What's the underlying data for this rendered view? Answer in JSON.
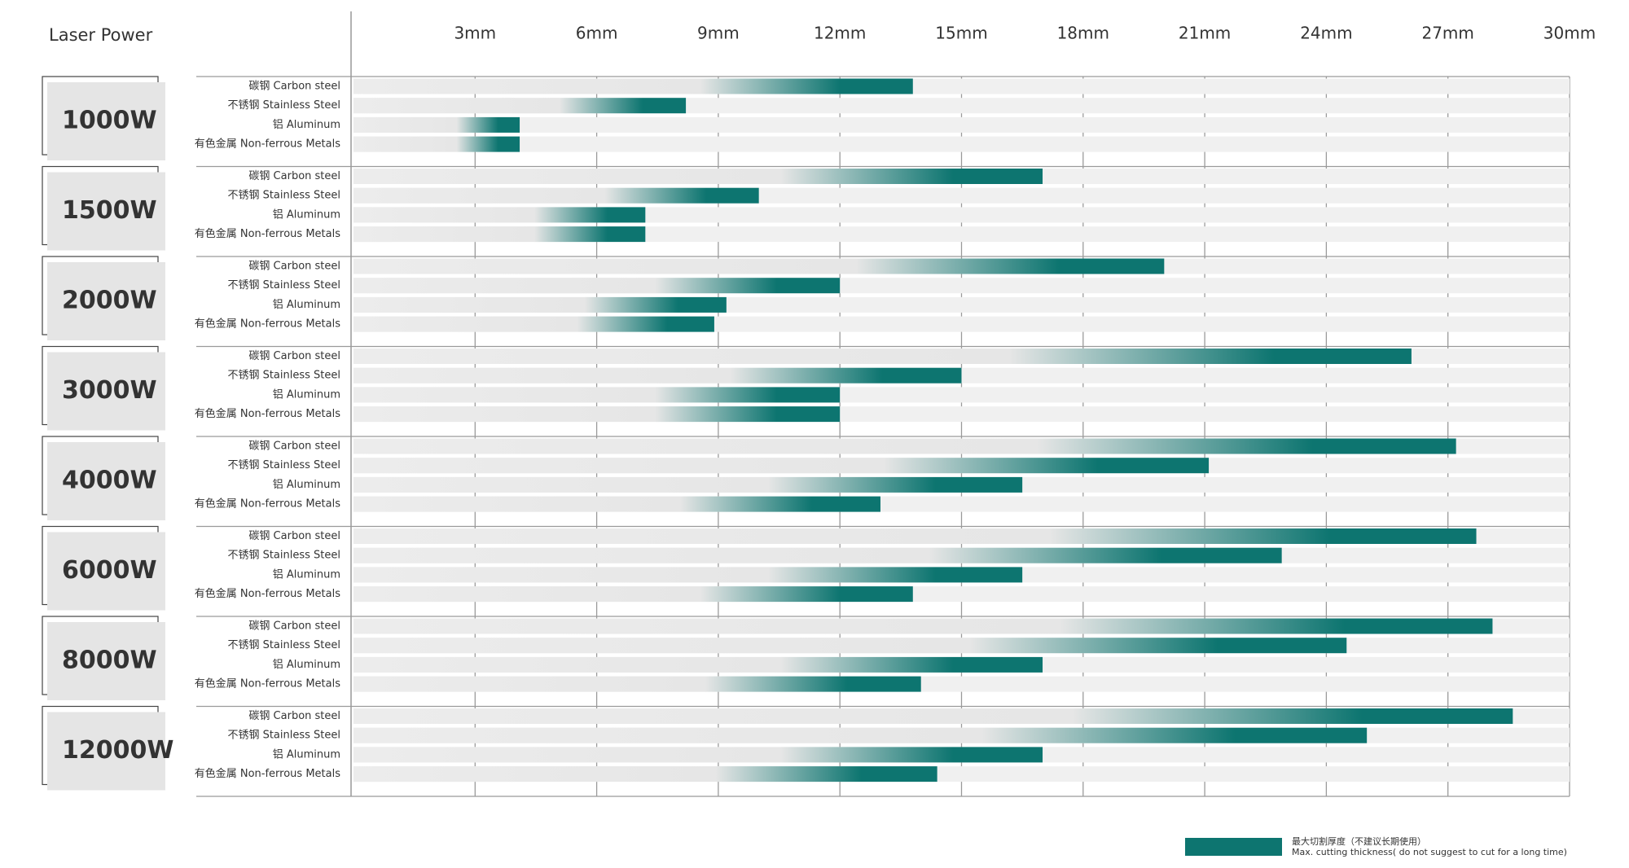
{
  "chart_data": {
    "type": "bar",
    "orientation": "horizontal",
    "y_label": "Laser Power",
    "categories": [
      "碳钢 Carbon steel",
      "不锈钢 Stainless Steel",
      "铝 Aluminum",
      "有色金属 Non-ferrous Metals"
    ],
    "series": [
      {
        "name": "1000W",
        "values": [
          13.8,
          8.2,
          4.1,
          4.1
        ]
      },
      {
        "name": "1500W",
        "values": [
          17,
          10,
          7.2,
          7.2
        ]
      },
      {
        "name": "2000W",
        "values": [
          20,
          12,
          9.2,
          8.9
        ]
      },
      {
        "name": "3000W",
        "values": [
          26.1,
          15,
          12,
          12
        ]
      },
      {
        "name": "4000W",
        "values": [
          27.2,
          21.1,
          16.5,
          13
        ]
      },
      {
        "name": "6000W",
        "values": [
          27.7,
          22.9,
          16.5,
          13.8
        ]
      },
      {
        "name": "8000W",
        "values": [
          28.1,
          24.5,
          17,
          14
        ]
      },
      {
        "name": "12000W",
        "values": [
          28.6,
          25,
          17,
          14.4
        ]
      }
    ],
    "color": "#0d7570",
    "xlim": [
      0,
      30
    ],
    "xticks": [
      {
        "value": 3,
        "label": "3mm"
      },
      {
        "value": 6,
        "label": "6mm"
      },
      {
        "value": 9,
        "label": "9mm"
      },
      {
        "value": 12,
        "label": "12mm"
      },
      {
        "value": 15,
        "label": "15mm"
      },
      {
        "value": 18,
        "label": "18mm"
      },
      {
        "value": 21,
        "label": "21mm"
      },
      {
        "value": 24,
        "label": "24mm"
      },
      {
        "value": 27,
        "label": "27mm"
      },
      {
        "value": 30,
        "label": "30mm"
      }
    ],
    "grid": true,
    "legend": {
      "label_cn": "最大切割厚度（不建议长期使用）",
      "label_en": "Max. cutting thickness( do not suggest to cut for a long time)"
    }
  }
}
